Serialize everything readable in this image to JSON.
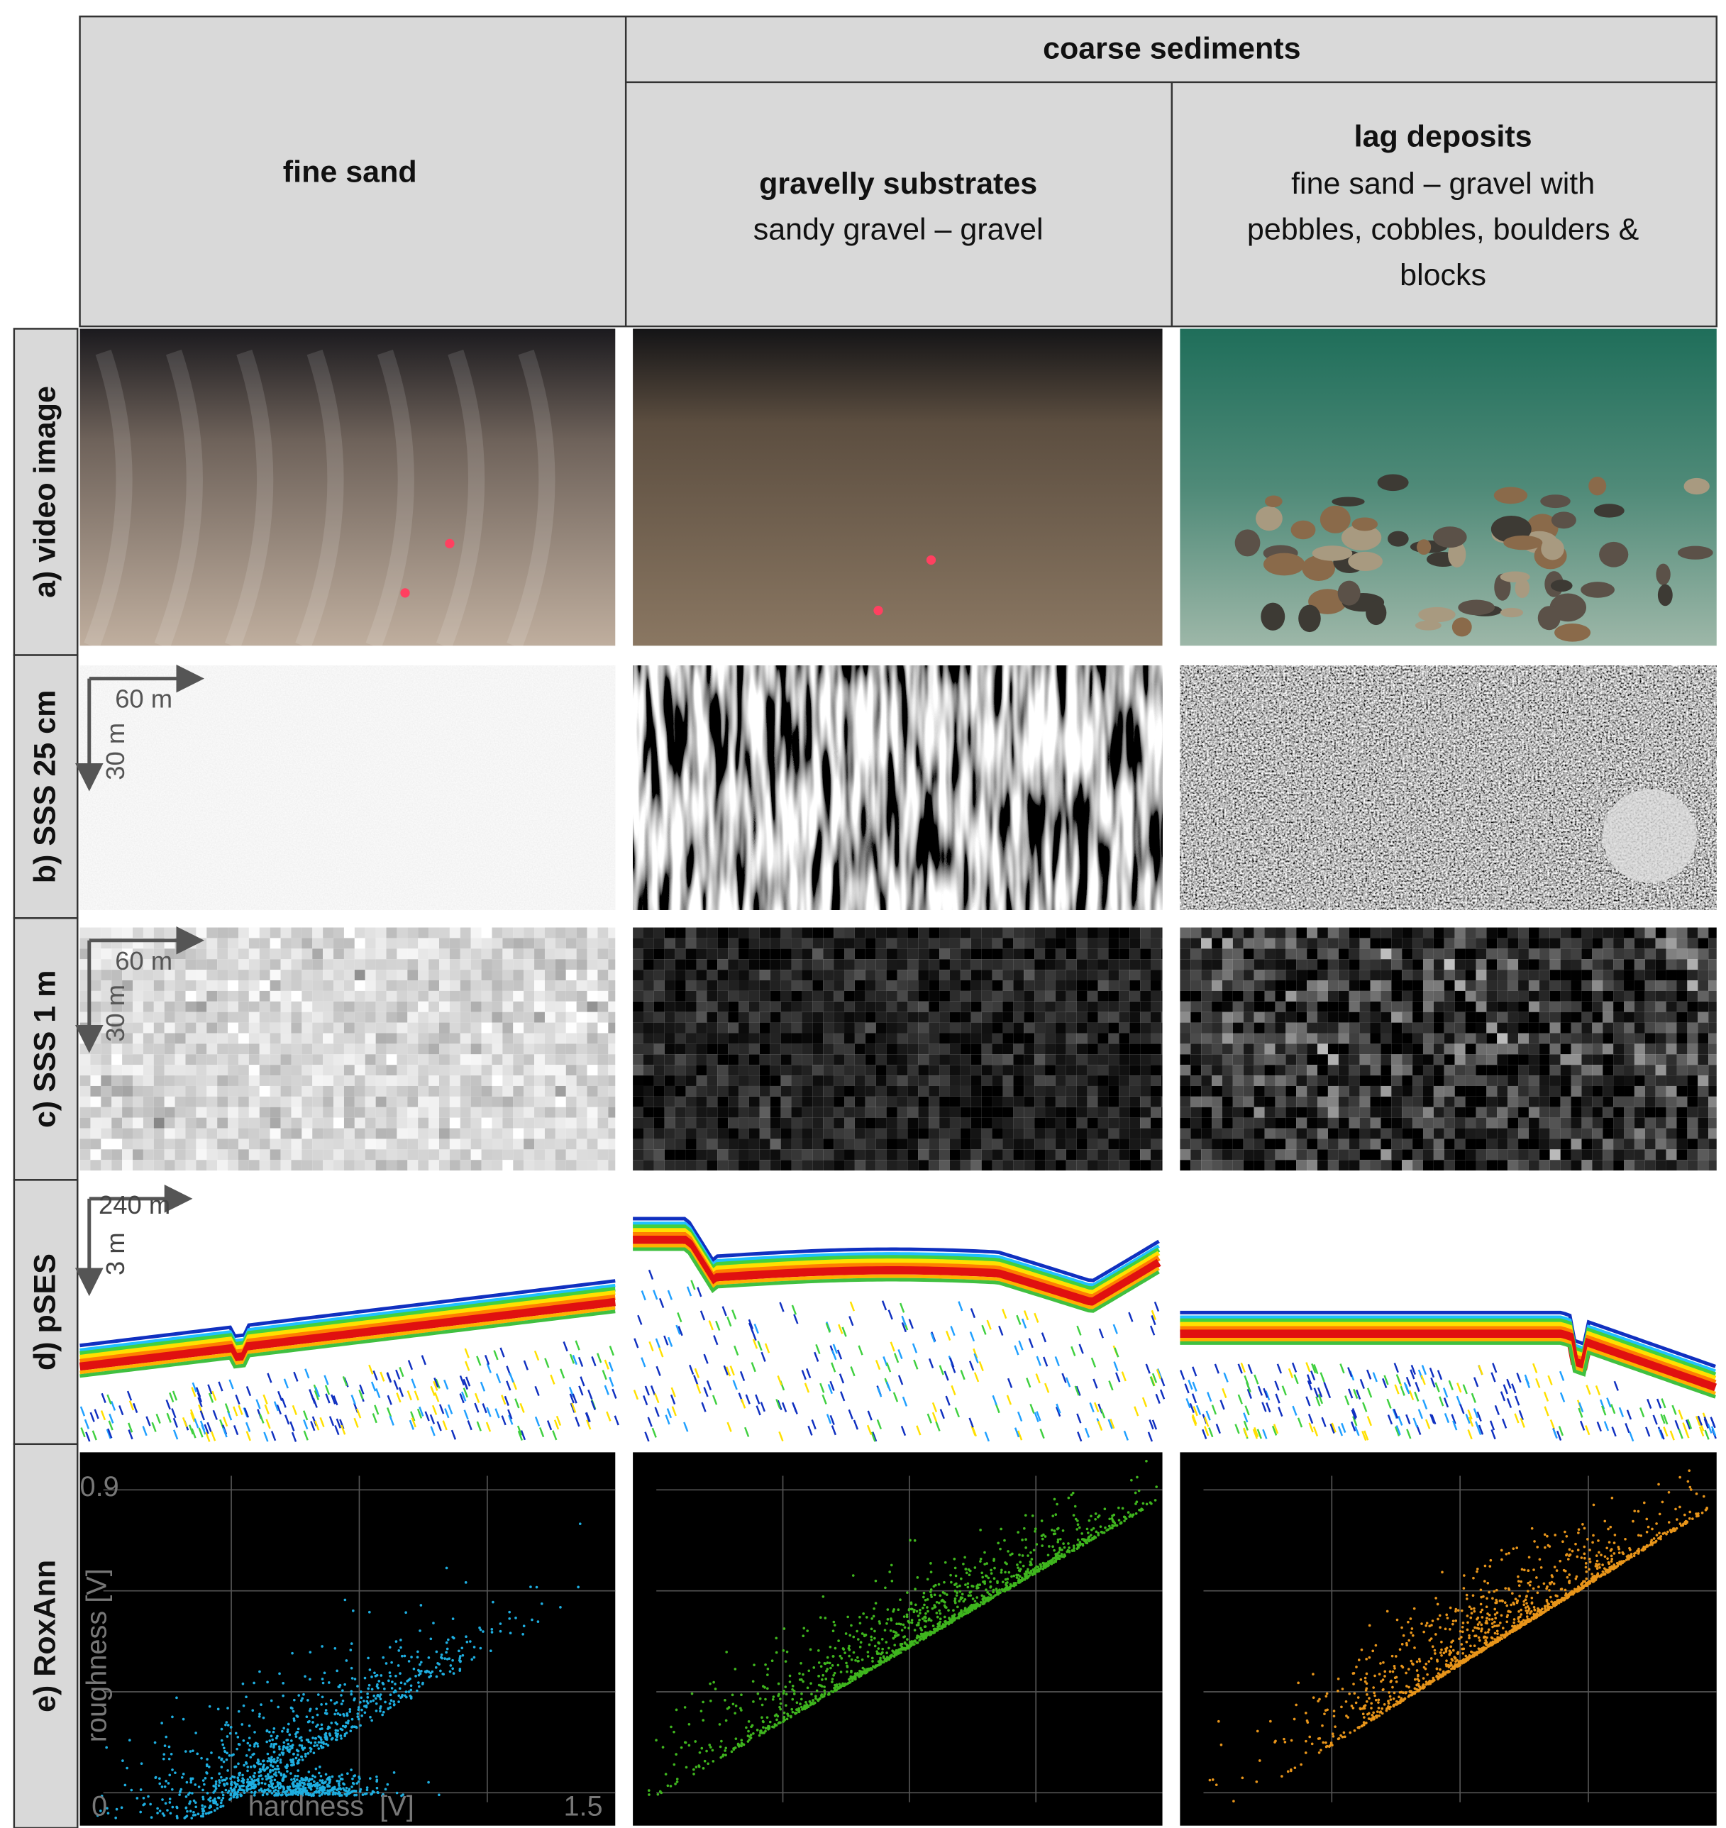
{
  "header": {
    "group": "coarse sediments",
    "columns": [
      {
        "title": "fine sand"
      },
      {
        "title": "gravelly substrates",
        "subtitle": [
          "sandy gravel – gravel"
        ]
      },
      {
        "title": "lag deposits",
        "subtitle": [
          "fine sand – gravel with",
          "pebbles, cobbles, boulders &",
          "blocks"
        ]
      }
    ]
  },
  "rows": [
    "a) video image",
    "b) SSS 25 cm",
    "c) SSS 1 m",
    "d) pSES",
    "e) RoxAnn"
  ],
  "sss_25cm_scale": {
    "x": "60 m",
    "y": "30 m"
  },
  "sss_1m_scale": {
    "x": "60 m",
    "y": "30 m"
  },
  "pses_scale": {
    "x": "240 m",
    "y": "3 m"
  },
  "roxann": {
    "y_label": "roughness [V]",
    "x_label": "hardness  [V]",
    "x_min": 0,
    "x_max": 1.5,
    "y_max": 0.9
  }
}
